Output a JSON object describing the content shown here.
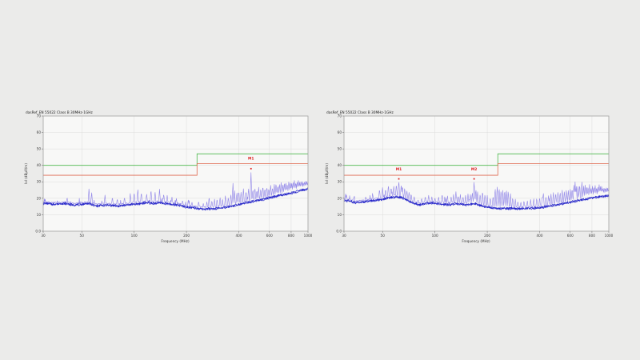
{
  "page": {
    "background": "#ebebea"
  },
  "chart_data": [
    {
      "type": "line",
      "title": "dasRef_EN 55022 Class B 30MHz-1GHz",
      "xlabel": "Frequency (MHz)",
      "ylabel": "lvl (dBµV/m)",
      "x_scale": "log",
      "x_range": [
        30,
        1000
      ],
      "y_range": [
        0,
        70
      ],
      "x_ticks": [
        30,
        50,
        100,
        200,
        400,
        600,
        800,
        1000
      ],
      "y_ticks": [
        "70",
        "60",
        "50",
        "40",
        "30",
        "20",
        "10",
        "0.0"
      ],
      "grid": true,
      "limit_lines": [
        {
          "name": "class-b-limit",
          "color": "#4db84d",
          "points": [
            [
              30,
              40
            ],
            [
              230,
              40
            ],
            [
              230,
              47
            ],
            [
              1000,
              47
            ]
          ]
        },
        {
          "name": "margin-line",
          "color": "#e06a50",
          "points": [
            [
              30,
              34
            ],
            [
              230,
              34
            ],
            [
              230,
              41
            ],
            [
              1000,
              41
            ]
          ]
        }
      ],
      "markers": [
        {
          "label": "M1",
          "freq": 470,
          "value": 38,
          "label_db": 43.5
        }
      ],
      "series": {
        "envelope": [
          [
            30,
            17
          ],
          [
            35,
            16.5
          ],
          [
            40,
            17
          ],
          [
            45,
            16
          ],
          [
            50,
            16.5
          ],
          [
            55,
            17
          ],
          [
            60,
            15.5
          ],
          [
            70,
            16
          ],
          [
            80,
            15.5
          ],
          [
            90,
            16
          ],
          [
            100,
            16.5
          ],
          [
            110,
            17
          ],
          [
            120,
            17.5
          ],
          [
            130,
            17
          ],
          [
            140,
            17.5
          ],
          [
            160,
            16.5
          ],
          [
            180,
            16
          ],
          [
            200,
            14.8
          ],
          [
            220,
            14.5
          ],
          [
            230,
            14
          ],
          [
            250,
            13.6
          ],
          [
            270,
            13.8
          ],
          [
            300,
            14
          ],
          [
            330,
            14.5
          ],
          [
            370,
            15.5
          ],
          [
            400,
            16.5
          ],
          [
            440,
            17.5
          ],
          [
            470,
            18
          ],
          [
            500,
            18.5
          ],
          [
            560,
            19.5
          ],
          [
            600,
            20.5
          ],
          [
            660,
            21.5
          ],
          [
            720,
            22.3
          ],
          [
            780,
            23
          ],
          [
            850,
            24
          ],
          [
            920,
            25
          ],
          [
            1000,
            25.8
          ]
        ],
        "spikes": [
          [
            55,
            26
          ],
          [
            57,
            24
          ],
          [
            68,
            22
          ],
          [
            75,
            21
          ],
          [
            80,
            20
          ],
          [
            88,
            21
          ],
          [
            95,
            23
          ],
          [
            100,
            24
          ],
          [
            105,
            26
          ],
          [
            110,
            24
          ],
          [
            118,
            23
          ],
          [
            125,
            25.5
          ],
          [
            132,
            24
          ],
          [
            140,
            25.8
          ],
          [
            148,
            23
          ],
          [
            155,
            22
          ],
          [
            165,
            21
          ],
          [
            175,
            20
          ],
          [
            190,
            19
          ],
          [
            205,
            19.5
          ],
          [
            215,
            18
          ],
          [
            235,
            18.5
          ],
          [
            250,
            17
          ],
          [
            262,
            18
          ],
          [
            270,
            21.4
          ],
          [
            280,
            19
          ],
          [
            290,
            19.5
          ],
          [
            300,
            20
          ],
          [
            312,
            21
          ],
          [
            322,
            20
          ],
          [
            335,
            22
          ],
          [
            348,
            21
          ],
          [
            360,
            23
          ],
          [
            370,
            30
          ],
          [
            378,
            25
          ],
          [
            390,
            24
          ],
          [
            400,
            25
          ],
          [
            412,
            24
          ],
          [
            425,
            26
          ],
          [
            440,
            25
          ],
          [
            455,
            26.5
          ],
          [
            470,
            36.5
          ],
          [
            482,
            26
          ],
          [
            495,
            27
          ],
          [
            508,
            25.5
          ],
          [
            520,
            27
          ],
          [
            535,
            26
          ],
          [
            550,
            28
          ],
          [
            565,
            26.5
          ],
          [
            580,
            27.5
          ],
          [
            595,
            26
          ],
          [
            610,
            28
          ],
          [
            625,
            27
          ],
          [
            640,
            28.5
          ],
          [
            655,
            29.5
          ],
          [
            670,
            28
          ],
          [
            685,
            29
          ],
          [
            700,
            30
          ],
          [
            715,
            28.5
          ],
          [
            730,
            29.5
          ],
          [
            745,
            30.5
          ],
          [
            760,
            29
          ],
          [
            775,
            30
          ],
          [
            790,
            30.5
          ],
          [
            805,
            29.5
          ],
          [
            820,
            30.5
          ],
          [
            835,
            31
          ],
          [
            850,
            30
          ],
          [
            865,
            30.5
          ],
          [
            880,
            31
          ],
          [
            895,
            30
          ],
          [
            910,
            30.5
          ],
          [
            925,
            31
          ],
          [
            940,
            30
          ],
          [
            955,
            30.5
          ],
          [
            970,
            31
          ],
          [
            985,
            30.5
          ],
          [
            1000,
            30
          ]
        ],
        "noise": {
          "peak_seed": 3,
          "avg_seed": 7,
          "peak_amp": 1.0,
          "avg_amp": 1.3
        }
      },
      "colors": {
        "peak_trace": "#8f84e8",
        "avg_trace": "#2626c9",
        "marker": "#dd2222",
        "plot_bg": "#f8f8f7",
        "grid": "#dcdcdb",
        "frame": "#9b9b9b"
      }
    },
    {
      "type": "line",
      "title": "dasRef_EN 55022 Class B 30MHz-1GHz",
      "xlabel": "Frequency (MHz)",
      "ylabel": "lvl (dBµV/m)",
      "x_scale": "log",
      "x_range": [
        30,
        1000
      ],
      "y_range": [
        0,
        70
      ],
      "x_ticks": [
        30,
        50,
        100,
        200,
        400,
        600,
        800,
        1000
      ],
      "y_ticks": [
        "70",
        "60",
        "50",
        "40",
        "30",
        "20",
        "10",
        "0.0"
      ],
      "grid": true,
      "limit_lines": [
        {
          "name": "class-b-limit",
          "color": "#4db84d",
          "points": [
            [
              30,
              40
            ],
            [
              230,
              40
            ],
            [
              230,
              47
            ],
            [
              1000,
              47
            ]
          ]
        },
        {
          "name": "margin-line",
          "color": "#e06a50",
          "points": [
            [
              30,
              34
            ],
            [
              230,
              34
            ],
            [
              230,
              41
            ],
            [
              1000,
              41
            ]
          ]
        }
      ],
      "markers": [
        {
          "label": "M1",
          "freq": 62,
          "value": 31.8,
          "label_db": 37
        },
        {
          "label": "M2",
          "freq": 168,
          "value": 31.8,
          "label_db": 37
        }
      ],
      "series": {
        "envelope": [
          [
            30,
            19
          ],
          [
            32,
            18.5
          ],
          [
            35,
            17.5
          ],
          [
            38,
            17.8
          ],
          [
            42,
            18.5
          ],
          [
            46,
            19
          ],
          [
            50,
            19.5
          ],
          [
            55,
            20.5
          ],
          [
            60,
            21
          ],
          [
            65,
            20.5
          ],
          [
            70,
            18.5
          ],
          [
            75,
            17.5
          ],
          [
            80,
            16.2
          ],
          [
            85,
            16.5
          ],
          [
            90,
            17
          ],
          [
            95,
            17.3
          ],
          [
            100,
            17
          ],
          [
            110,
            16.5
          ],
          [
            120,
            16.2
          ],
          [
            130,
            16.8
          ],
          [
            140,
            16.5
          ],
          [
            150,
            16.2
          ],
          [
            160,
            16.5
          ],
          [
            170,
            17
          ],
          [
            180,
            16
          ],
          [
            190,
            15.2
          ],
          [
            200,
            14.8
          ],
          [
            215,
            14.2
          ],
          [
            230,
            14
          ],
          [
            245,
            14
          ],
          [
            260,
            14
          ],
          [
            280,
            13.9
          ],
          [
            300,
            13.8
          ],
          [
            320,
            13.8
          ],
          [
            350,
            14
          ],
          [
            380,
            14.3
          ],
          [
            420,
            14.8
          ],
          [
            460,
            15.5
          ],
          [
            500,
            16.2
          ],
          [
            550,
            17
          ],
          [
            600,
            17.8
          ],
          [
            650,
            18.5
          ],
          [
            700,
            19.2
          ],
          [
            750,
            19.8
          ],
          [
            800,
            20.3
          ],
          [
            850,
            20.8
          ],
          [
            900,
            21.1
          ],
          [
            950,
            21.4
          ],
          [
            1000,
            21.6
          ]
        ],
        "spikes": [
          [
            31,
            22
          ],
          [
            34,
            20.5
          ],
          [
            40,
            21
          ],
          [
            44,
            21.5
          ],
          [
            48,
            26
          ],
          [
            50,
            27
          ],
          [
            52,
            26
          ],
          [
            54,
            28.5
          ],
          [
            56,
            27
          ],
          [
            58,
            27.5
          ],
          [
            60,
            29
          ],
          [
            62,
            31.3
          ],
          [
            64,
            29
          ],
          [
            65,
            28
          ],
          [
            67,
            26.5
          ],
          [
            69,
            25
          ],
          [
            71,
            24
          ],
          [
            73,
            23
          ],
          [
            76,
            21
          ],
          [
            80,
            19.5
          ],
          [
            84,
            20
          ],
          [
            88,
            21.5
          ],
          [
            92,
            22
          ],
          [
            96,
            21
          ],
          [
            100,
            20.5
          ],
          [
            105,
            21
          ],
          [
            110,
            23
          ],
          [
            114,
            21.5
          ],
          [
            118,
            22
          ],
          [
            124,
            21
          ],
          [
            128,
            22.5
          ],
          [
            132,
            24.5
          ],
          [
            136,
            22
          ],
          [
            140,
            22.5
          ],
          [
            145,
            21.5
          ],
          [
            150,
            22
          ],
          [
            155,
            23
          ],
          [
            160,
            22.5
          ],
          [
            164,
            24
          ],
          [
            168,
            31.3
          ],
          [
            172,
            26
          ],
          [
            176,
            24
          ],
          [
            182,
            23
          ],
          [
            188,
            25
          ],
          [
            194,
            23
          ],
          [
            200,
            22
          ],
          [
            208,
            21
          ],
          [
            216,
            22
          ],
          [
            222,
            27
          ],
          [
            228,
            28.5
          ],
          [
            234,
            27.5
          ],
          [
            240,
            26
          ],
          [
            246,
            25
          ],
          [
            252,
            26
          ],
          [
            258,
            24.5
          ],
          [
            264,
            25.5
          ],
          [
            272,
            23
          ],
          [
            280,
            21
          ],
          [
            290,
            19.5
          ],
          [
            300,
            18.5
          ],
          [
            312,
            18
          ],
          [
            325,
            19
          ],
          [
            340,
            18.5
          ],
          [
            355,
            19.5
          ],
          [
            370,
            20
          ],
          [
            385,
            20.5
          ],
          [
            400,
            21
          ],
          [
            415,
            22
          ],
          [
            420,
            24
          ],
          [
            435,
            21.5
          ],
          [
            450,
            22.5
          ],
          [
            465,
            23
          ],
          [
            480,
            24
          ],
          [
            495,
            23.5
          ],
          [
            510,
            24.5
          ],
          [
            525,
            24
          ],
          [
            540,
            25
          ],
          [
            555,
            24.5
          ],
          [
            570,
            25.5
          ],
          [
            585,
            25
          ],
          [
            600,
            26
          ],
          [
            615,
            26.5
          ],
          [
            630,
            28
          ],
          [
            640,
            30
          ],
          [
            650,
            27.5
          ],
          [
            665,
            28
          ],
          [
            680,
            29
          ],
          [
            700,
            30.5
          ],
          [
            715,
            28
          ],
          [
            730,
            29
          ],
          [
            745,
            28
          ],
          [
            760,
            27.5
          ],
          [
            775,
            28.5
          ],
          [
            790,
            27
          ],
          [
            805,
            28
          ],
          [
            820,
            27.5
          ],
          [
            835,
            28
          ],
          [
            850,
            27
          ],
          [
            865,
            27.5
          ],
          [
            880,
            28.5
          ],
          [
            895,
            27.5
          ],
          [
            910,
            28
          ],
          [
            925,
            26.5
          ],
          [
            940,
            27
          ],
          [
            955,
            26.5
          ],
          [
            970,
            27
          ],
          [
            985,
            26.5
          ],
          [
            1000,
            26.5
          ]
        ],
        "noise": {
          "peak_seed": 11,
          "avg_seed": 13,
          "peak_amp": 1.0,
          "avg_amp": 1.3
        }
      },
      "colors": {
        "peak_trace": "#8f84e8",
        "avg_trace": "#2626c9",
        "marker": "#dd2222",
        "plot_bg": "#f8f8f7",
        "grid": "#dcdcdb",
        "frame": "#9b9b9b"
      }
    }
  ]
}
